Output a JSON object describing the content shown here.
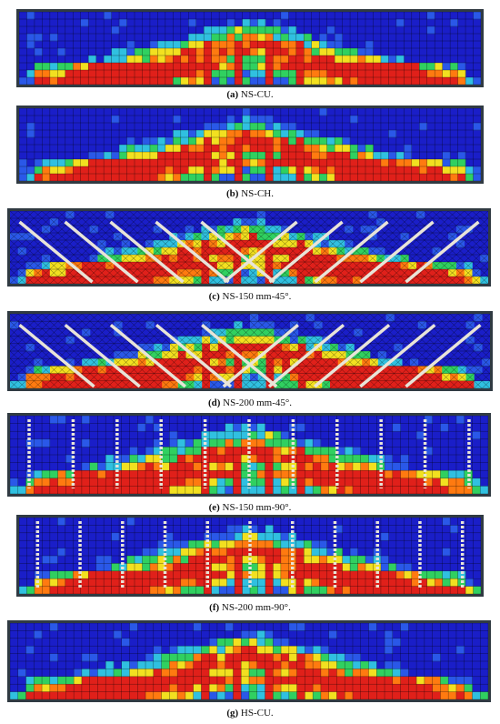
{
  "figure": {
    "panels": [
      {
        "id": "a",
        "letter": "(a)",
        "label": "NS-CU.",
        "variant": "grid",
        "bars": "none"
      },
      {
        "id": "b",
        "letter": "(b)",
        "label": "NS-CH.",
        "variant": "grid",
        "bars": "none"
      },
      {
        "id": "c",
        "letter": "(c)",
        "label": "NS-150 mm-45°.",
        "variant": "tri",
        "bars": "diag"
      },
      {
        "id": "d",
        "letter": "(d)",
        "label": "NS-200 mm-45°.",
        "variant": "tri",
        "bars": "diag"
      },
      {
        "id": "e",
        "letter": "(e)",
        "label": "NS-150 mm-90°.",
        "variant": "grid",
        "bars": "vert"
      },
      {
        "id": "f",
        "letter": "(f)",
        "label": "NS-200 mm-90°.",
        "variant": "grid",
        "bars": "vert"
      },
      {
        "id": "g",
        "letter": "(g)",
        "label": "HS-CU.",
        "variant": "grid",
        "bars": "none"
      }
    ]
  },
  "colors": {
    "background": "#1a1ec8",
    "grid": "#000000",
    "crack_red": "#e0201a",
    "crack_orange": "#ff7a10",
    "crack_yellow": "#f2e020",
    "crack_green": "#30d060",
    "crack_cyan": "#30c0e0",
    "bar": "#e8e4d8"
  }
}
